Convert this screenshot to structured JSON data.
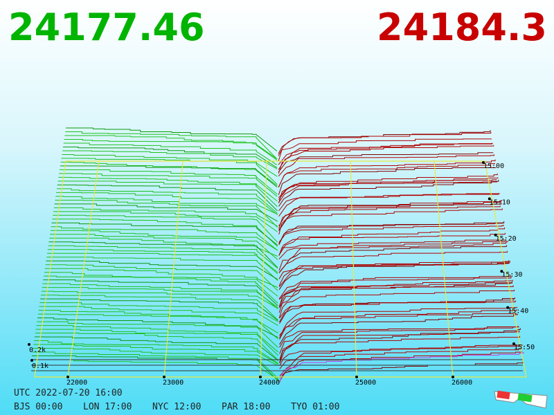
{
  "header": {
    "bid": "24177.46",
    "ask": "24184.3"
  },
  "axis": {
    "price_ticks": [
      22000,
      23000,
      24000,
      25000,
      26000
    ],
    "depth_ticks": [
      "0.2k",
      "0.1k"
    ],
    "time_ticks": [
      "15:00",
      "15:10",
      "15:20",
      "15:30",
      "15:40",
      "15:50"
    ]
  },
  "footer": {
    "utc": "UTC 2022-07-20 16:00",
    "zones": [
      "BJS 00:00",
      "LON 17:00",
      "NYC 12:00",
      "PAR 18:00",
      "TYO 01:00"
    ]
  }
}
